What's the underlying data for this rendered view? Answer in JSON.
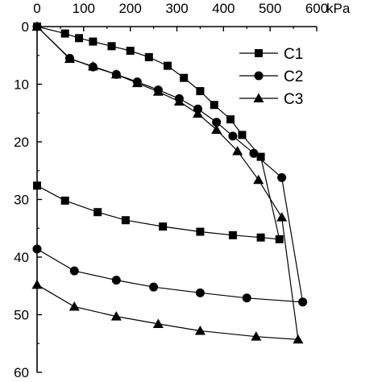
{
  "chart_data": {
    "type": "line",
    "x_unit": "kPa",
    "xlim": [
      0,
      600
    ],
    "ylim": [
      0,
      60
    ],
    "x_ticks": [
      0,
      100,
      200,
      300,
      400,
      500,
      600
    ],
    "y_ticks": [
      0,
      10,
      20,
      30,
      40,
      50,
      60
    ],
    "x_axis_position": "top",
    "y_axis_inverted": true,
    "grid": false,
    "legend_position": "top-right",
    "series": [
      {
        "name": "C1",
        "marker": "square",
        "x": [
          0,
          60,
          90,
          120,
          160,
          200,
          240,
          280,
          315,
          350,
          380,
          415,
          440,
          480,
          520,
          480,
          420,
          350,
          270,
          190,
          130,
          60,
          0
        ],
        "y": [
          0,
          1.2,
          2.0,
          2.6,
          3.4,
          4.2,
          5.3,
          6.8,
          8.9,
          11.2,
          13.6,
          16.1,
          18.8,
          22.6,
          36.9,
          36.6,
          36.2,
          35.6,
          34.7,
          33.6,
          32.2,
          30.2,
          27.6
        ]
      },
      {
        "name": "C2",
        "marker": "circle",
        "x": [
          0,
          70,
          120,
          170,
          215,
          260,
          305,
          345,
          385,
          420,
          465,
          525,
          570,
          450,
          350,
          250,
          170,
          80,
          0
        ],
        "y": [
          0,
          5.5,
          7.0,
          8.3,
          9.6,
          11.0,
          12.5,
          14.3,
          16.6,
          19.0,
          22.0,
          26.2,
          47.8,
          47.1,
          46.2,
          45.2,
          44.0,
          42.4,
          38.6
        ]
      },
      {
        "name": "C3",
        "marker": "triangle",
        "x": [
          0,
          70,
          120,
          170,
          215,
          260,
          305,
          345,
          385,
          430,
          475,
          525,
          560,
          470,
          350,
          260,
          170,
          80,
          0
        ],
        "y": [
          0,
          5.6,
          6.9,
          8.3,
          9.8,
          11.3,
          13.0,
          15.1,
          17.9,
          21.6,
          26.6,
          33.1,
          54.3,
          53.8,
          52.8,
          51.6,
          50.3,
          48.6,
          44.8
        ]
      }
    ]
  }
}
